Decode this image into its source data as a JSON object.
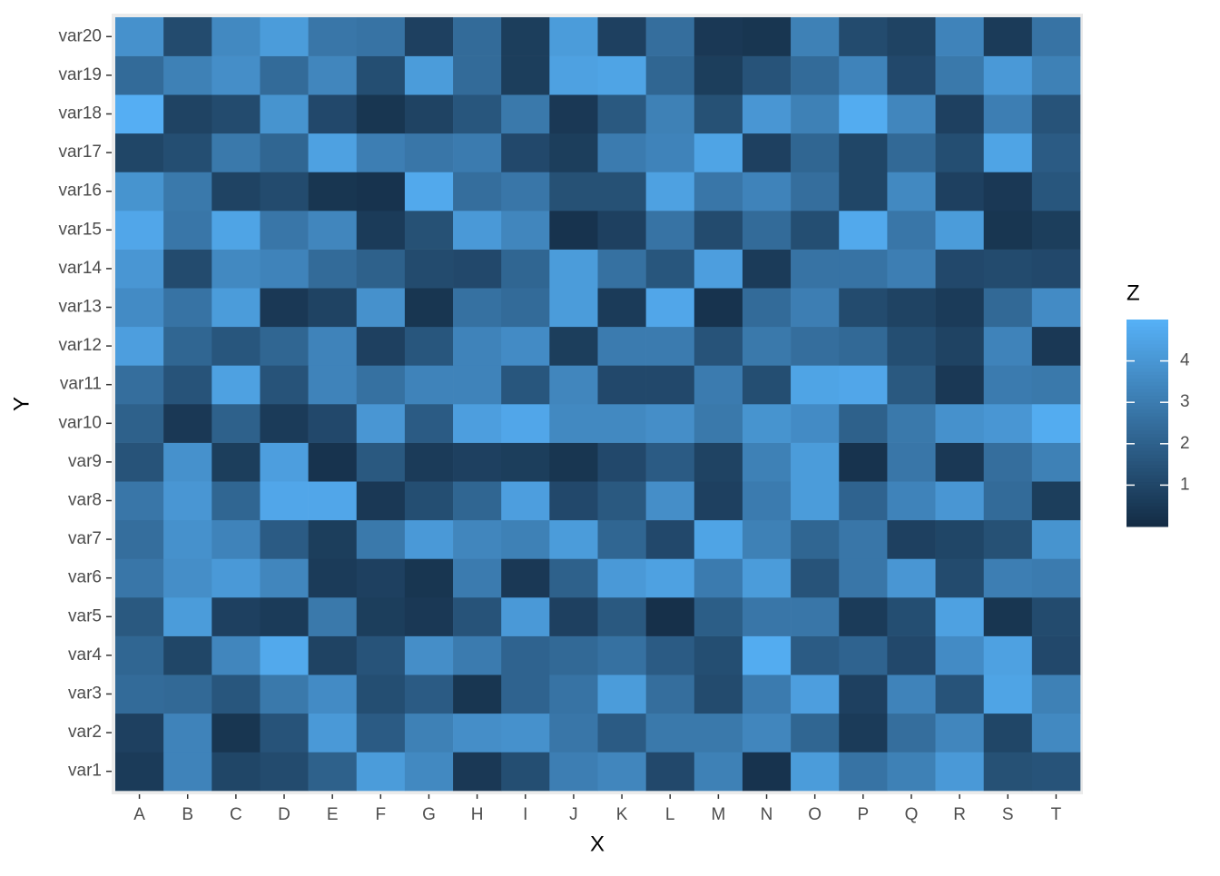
{
  "chart_data": {
    "type": "heatmap",
    "x_label": "X",
    "y_label": "Y",
    "legend_title": "Z",
    "x_categories": [
      "A",
      "B",
      "C",
      "D",
      "E",
      "F",
      "G",
      "H",
      "I",
      "J",
      "K",
      "L",
      "M",
      "N",
      "O",
      "P",
      "Q",
      "R",
      "S",
      "T"
    ],
    "y_categories": [
      "var1",
      "var2",
      "var3",
      "var4",
      "var5",
      "var6",
      "var7",
      "var8",
      "var9",
      "var10",
      "var11",
      "var12",
      "var13",
      "var14",
      "var15",
      "var16",
      "var17",
      "var18",
      "var19",
      "var20"
    ],
    "values": [
      [
        0.6,
        3.3,
        1.0,
        1.2,
        2.0,
        4.2,
        3.5,
        0.5,
        1.3,
        3.1,
        3.4,
        1.1,
        3.2,
        0.3,
        4.2,
        2.7,
        3.2,
        4.1,
        1.4,
        1.5
      ],
      [
        0.8,
        3.3,
        0.4,
        1.5,
        4.1,
        1.8,
        3.2,
        3.7,
        3.8,
        2.8,
        1.8,
        2.9,
        2.9,
        3.4,
        2.2,
        0.6,
        2.5,
        3.4,
        1.0,
        3.5
      ],
      [
        2.4,
        2.3,
        1.6,
        2.9,
        3.6,
        1.3,
        1.8,
        0.4,
        2.1,
        2.7,
        4.2,
        2.5,
        1.2,
        3.0,
        4.3,
        0.8,
        3.3,
        1.5,
        4.5,
        3.2
      ],
      [
        2.2,
        1.0,
        3.4,
        4.7,
        0.9,
        1.5,
        3.7,
        3.0,
        2.1,
        2.3,
        2.6,
        1.8,
        1.3,
        4.8,
        1.8,
        2.1,
        1.1,
        3.6,
        4.4,
        1.1
      ],
      [
        1.7,
        4.2,
        0.8,
        0.6,
        2.9,
        0.7,
        0.5,
        1.5,
        4.1,
        0.8,
        1.7,
        0.2,
        1.9,
        2.8,
        2.8,
        0.6,
        1.3,
        4.4,
        0.4,
        1.2
      ],
      [
        2.8,
        3.7,
        4.1,
        3.4,
        0.6,
        0.8,
        0.4,
        3.0,
        0.5,
        2.0,
        4.1,
        4.4,
        3.0,
        4.2,
        1.5,
        2.8,
        4.0,
        1.2,
        3.1,
        3.0
      ],
      [
        2.5,
        3.8,
        3.3,
        1.8,
        0.7,
        2.9,
        4.1,
        3.4,
        3.2,
        4.2,
        2.2,
        1.1,
        4.5,
        3.2,
        2.2,
        2.8,
        0.8,
        1.0,
        1.4,
        3.9
      ],
      [
        2.8,
        4.0,
        2.2,
        4.6,
        4.6,
        0.5,
        1.3,
        2.2,
        4.3,
        1.1,
        1.7,
        3.7,
        0.8,
        3.0,
        4.2,
        2.1,
        3.3,
        4.0,
        2.4,
        0.7
      ],
      [
        1.5,
        3.8,
        0.7,
        4.3,
        0.3,
        1.7,
        0.6,
        0.8,
        0.7,
        0.4,
        1.1,
        1.8,
        0.9,
        3.2,
        4.2,
        0.3,
        2.8,
        0.5,
        2.5,
        3.2
      ],
      [
        2.0,
        0.5,
        2.0,
        0.6,
        1.1,
        4.0,
        1.8,
        4.3,
        4.6,
        3.5,
        3.5,
        3.7,
        2.9,
        3.9,
        3.6,
        2.0,
        2.9,
        3.8,
        4.0,
        4.8
      ],
      [
        2.5,
        1.5,
        4.4,
        1.5,
        3.3,
        2.6,
        3.3,
        3.3,
        1.6,
        3.4,
        1.1,
        1.1,
        3.0,
        1.3,
        4.5,
        4.6,
        1.7,
        0.5,
        3.0,
        2.9
      ],
      [
        4.3,
        2.2,
        1.6,
        2.2,
        3.3,
        0.8,
        1.6,
        3.3,
        3.6,
        0.7,
        3.0,
        3.0,
        1.5,
        2.9,
        2.5,
        2.3,
        1.3,
        0.9,
        3.3,
        0.5
      ],
      [
        3.6,
        2.7,
        4.2,
        0.5,
        0.9,
        3.8,
        0.4,
        2.6,
        2.4,
        4.2,
        0.6,
        4.6,
        0.3,
        2.4,
        3.1,
        1.2,
        0.9,
        0.6,
        2.3,
        3.6
      ],
      [
        4.0,
        1.2,
        3.5,
        3.3,
        2.4,
        2.0,
        1.2,
        1.1,
        2.2,
        4.2,
        2.6,
        1.6,
        4.3,
        0.6,
        2.7,
        2.7,
        3.1,
        1.1,
        1.2,
        1.1
      ],
      [
        4.6,
        2.8,
        4.5,
        2.8,
        3.4,
        0.6,
        1.4,
        4.1,
        3.4,
        0.3,
        0.8,
        2.7,
        1.2,
        2.4,
        1.3,
        4.7,
        2.8,
        4.2,
        0.4,
        0.7
      ],
      [
        3.9,
        2.9,
        0.9,
        1.2,
        0.4,
        0.3,
        4.7,
        2.5,
        2.8,
        1.4,
        1.4,
        4.4,
        2.8,
        3.3,
        2.5,
        1.0,
        3.5,
        0.8,
        0.5,
        1.6
      ],
      [
        1.0,
        1.3,
        2.9,
        2.2,
        4.4,
        3.1,
        2.8,
        3.0,
        1.1,
        0.7,
        3.0,
        3.3,
        4.5,
        0.8,
        2.2,
        1.0,
        2.3,
        1.3,
        4.5,
        1.8
      ],
      [
        4.9,
        0.9,
        1.2,
        3.9,
        1.1,
        0.4,
        0.9,
        1.6,
        2.9,
        0.5,
        1.7,
        3.2,
        1.4,
        4.0,
        3.2,
        4.8,
        3.4,
        0.8,
        3.1,
        1.5
      ],
      [
        2.4,
        3.2,
        3.7,
        2.4,
        3.4,
        1.3,
        4.2,
        2.4,
        0.7,
        4.4,
        4.5,
        2.2,
        0.7,
        1.5,
        2.4,
        3.3,
        1.1,
        2.9,
        4.1,
        3.2
      ],
      [
        3.8,
        1.2,
        3.5,
        4.2,
        2.8,
        2.7,
        0.8,
        2.4,
        0.7,
        4.2,
        0.8,
        2.5,
        0.5,
        0.4,
        3.2,
        1.2,
        0.9,
        3.3,
        0.6,
        2.7
      ]
    ],
    "zlim": [
      0,
      5
    ],
    "legend_ticks": [
      1,
      2,
      3,
      4
    ],
    "color_low": "#132B43",
    "color_high": "#56B1F7"
  }
}
